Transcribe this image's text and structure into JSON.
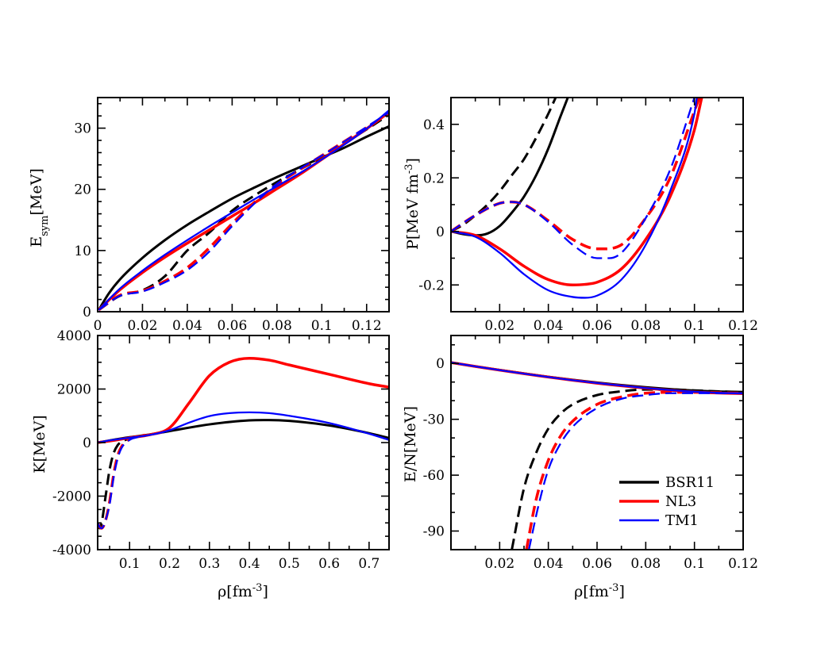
{
  "chart_data": [
    {
      "id": "esym",
      "type": "line",
      "ylabel_main": "E",
      "ylabel_sub": "sym",
      "ylabel_tail": "[MeV]",
      "xlim": [
        0,
        0.13
      ],
      "ylim": [
        0,
        35
      ],
      "xticks": [
        "0",
        "0.02",
        "0.04",
        "0.06",
        "0.08",
        "0.1",
        "0.12"
      ],
      "yticks": [
        "0",
        "10",
        "20",
        "30"
      ],
      "series": [
        {
          "name": "BSR11",
          "model": "BSR11",
          "style": "solid",
          "x": [
            0.0005,
            0.005,
            0.01,
            0.02,
            0.03,
            0.04,
            0.05,
            0.06,
            0.07,
            0.08,
            0.09,
            0.1,
            0.11,
            0.12,
            0.13
          ],
          "y": [
            0.3,
            3.0,
            5.3,
            8.8,
            11.7,
            14.2,
            16.4,
            18.5,
            20.3,
            22.0,
            23.6,
            25.2,
            26.8,
            28.6,
            30.3
          ]
        },
        {
          "name": "BSR11 dashed",
          "model": "BSR11",
          "style": "dashed",
          "x": [
            0.0005,
            0.01,
            0.02,
            0.03,
            0.04,
            0.05,
            0.06,
            0.07,
            0.08,
            0.09,
            0.1,
            0.11,
            0.12,
            0.13
          ],
          "y": [
            0.3,
            2.6,
            3.5,
            5.8,
            10.0,
            13.0,
            16.5,
            19.0,
            21.2,
            23.2,
            25.2,
            27.5,
            29.8,
            32.2
          ]
        },
        {
          "name": "NL3",
          "model": "NL3",
          "style": "solid",
          "x": [
            0.0005,
            0.01,
            0.02,
            0.03,
            0.04,
            0.05,
            0.06,
            0.07,
            0.08,
            0.09,
            0.1,
            0.11,
            0.12,
            0.13
          ],
          "y": [
            0.3,
            3.6,
            6.4,
            8.9,
            11.2,
            13.4,
            15.6,
            17.8,
            20.1,
            22.4,
            24.9,
            27.4,
            29.9,
            32.6
          ]
        },
        {
          "name": "NL3 dashed",
          "model": "NL3",
          "style": "dashed",
          "x": [
            0.0005,
            0.01,
            0.02,
            0.03,
            0.04,
            0.05,
            0.06,
            0.07,
            0.08,
            0.09,
            0.1,
            0.11,
            0.12,
            0.13
          ],
          "y": [
            0.3,
            2.7,
            3.4,
            5.0,
            7.2,
            10.5,
            14.4,
            17.9,
            20.8,
            23.2,
            25.5,
            27.8,
            30.1,
            32.4
          ]
        },
        {
          "name": "TM1",
          "model": "TM1",
          "style": "solid",
          "x": [
            0.0005,
            0.01,
            0.02,
            0.03,
            0.04,
            0.05,
            0.06,
            0.07,
            0.08,
            0.09,
            0.1,
            0.11,
            0.12,
            0.13
          ],
          "y": [
            0.3,
            3.8,
            6.7,
            9.3,
            11.7,
            14.0,
            16.2,
            18.4,
            20.5,
            22.6,
            24.9,
            27.3,
            29.9,
            32.9
          ]
        },
        {
          "name": "TM1 dashed",
          "model": "TM1",
          "style": "dashed",
          "x": [
            0.0005,
            0.01,
            0.02,
            0.03,
            0.04,
            0.05,
            0.06,
            0.07,
            0.08,
            0.09,
            0.1,
            0.11,
            0.12,
            0.13
          ],
          "y": [
            0.3,
            2.6,
            3.3,
            4.8,
            6.8,
            9.9,
            14.0,
            17.7,
            20.9,
            23.3,
            25.5,
            27.8,
            30.2,
            32.6
          ]
        }
      ]
    },
    {
      "id": "pressure",
      "type": "line",
      "ylabel_main": "P[MeV fm",
      "ylabel_sup": "-3",
      "ylabel_tail": "]",
      "xlim": [
        0,
        0.12
      ],
      "ylim": [
        -0.3,
        0.5
      ],
      "xticks": [
        "0.02",
        "0.04",
        "0.06",
        "0.08",
        "0.1",
        "0.12"
      ],
      "yticks": [
        "-0.2",
        "0",
        "0.2",
        "0.4"
      ],
      "series": [
        {
          "name": "BSR11",
          "model": "BSR11",
          "style": "solid",
          "x": [
            0.0,
            0.005,
            0.01,
            0.015,
            0.02,
            0.025,
            0.03,
            0.035,
            0.04,
            0.045,
            0.048
          ],
          "y": [
            0.0,
            -0.01,
            -0.015,
            -0.008,
            0.02,
            0.07,
            0.13,
            0.21,
            0.31,
            0.43,
            0.5
          ]
        },
        {
          "name": "BSR11 dashed",
          "model": "BSR11",
          "style": "dashed",
          "x": [
            0.0,
            0.005,
            0.01,
            0.015,
            0.02,
            0.025,
            0.03,
            0.035,
            0.04,
            0.043
          ],
          "y": [
            0.0,
            0.025,
            0.06,
            0.1,
            0.15,
            0.21,
            0.27,
            0.35,
            0.44,
            0.5
          ]
        },
        {
          "name": "NL3",
          "model": "NL3",
          "style": "solid",
          "x": [
            0.0,
            0.01,
            0.02,
            0.03,
            0.04,
            0.05,
            0.055,
            0.06,
            0.07,
            0.08,
            0.09,
            0.1,
            0.103
          ],
          "y": [
            0.0,
            -0.015,
            -0.065,
            -0.13,
            -0.18,
            -0.2,
            -0.198,
            -0.19,
            -0.14,
            -0.03,
            0.13,
            0.38,
            0.5
          ]
        },
        {
          "name": "NL3 dashed",
          "model": "NL3",
          "style": "dashed",
          "x": [
            0.0,
            0.01,
            0.02,
            0.025,
            0.03,
            0.04,
            0.05,
            0.06,
            0.07,
            0.08,
            0.09,
            0.1,
            0.102
          ],
          "y": [
            0.0,
            0.06,
            0.105,
            0.11,
            0.1,
            0.04,
            -0.03,
            -0.065,
            -0.05,
            0.05,
            0.2,
            0.45,
            0.5
          ]
        },
        {
          "name": "TM1",
          "model": "TM1",
          "style": "solid",
          "x": [
            0.0,
            0.01,
            0.02,
            0.03,
            0.04,
            0.05,
            0.055,
            0.06,
            0.07,
            0.08,
            0.09,
            0.1,
            0.101
          ],
          "y": [
            0.0,
            -0.02,
            -0.08,
            -0.16,
            -0.22,
            -0.245,
            -0.248,
            -0.24,
            -0.18,
            -0.05,
            0.15,
            0.44,
            0.5
          ]
        },
        {
          "name": "TM1 dashed",
          "model": "TM1",
          "style": "dashed",
          "x": [
            0.0,
            0.01,
            0.02,
            0.025,
            0.03,
            0.04,
            0.05,
            0.06,
            0.065,
            0.07,
            0.08,
            0.09,
            0.1
          ],
          "y": [
            0.0,
            0.06,
            0.105,
            0.11,
            0.1,
            0.035,
            -0.05,
            -0.1,
            -0.1,
            -0.08,
            0.05,
            0.23,
            0.5
          ]
        }
      ]
    },
    {
      "id": "incompressibility",
      "type": "line",
      "xlabel_main": "ρ[fm",
      "xlabel_sup": "-3",
      "xlabel_tail": "]",
      "ylabel_main": "K[MeV]",
      "xlim": [
        0.02,
        0.75
      ],
      "ylim": [
        -4000,
        4000
      ],
      "xticks": [
        "0.1",
        "0.2",
        "0.3",
        "0.4",
        "0.5",
        "0.6",
        "0.7"
      ],
      "yticks": [
        "-4000",
        "-2000",
        "0",
        "2000",
        "4000"
      ],
      "series": [
        {
          "name": "BSR11",
          "model": "BSR11",
          "style": "solid",
          "x": [
            0.02,
            0.05,
            0.1,
            0.15,
            0.2,
            0.3,
            0.4,
            0.45,
            0.5,
            0.6,
            0.7,
            0.75
          ],
          "y": [
            0,
            80,
            200,
            300,
            430,
            680,
            830,
            840,
            810,
            640,
            350,
            170
          ]
        },
        {
          "name": "BSR11 dashed",
          "model": "BSR11",
          "style": "dashed",
          "x": [
            0.02,
            0.025,
            0.03,
            0.04,
            0.05,
            0.06,
            0.07,
            0.08,
            0.1,
            0.12
          ],
          "y": [
            -3000,
            -3200,
            -3000,
            -2000,
            -1000,
            -400,
            -100,
            30,
            150,
            210
          ]
        },
        {
          "name": "NL3",
          "model": "NL3",
          "style": "solid",
          "x": [
            0.02,
            0.05,
            0.1,
            0.15,
            0.2,
            0.25,
            0.3,
            0.35,
            0.4,
            0.45,
            0.5,
            0.6,
            0.7,
            0.75
          ],
          "y": [
            0,
            60,
            180,
            290,
            550,
            1500,
            2500,
            3000,
            3150,
            3080,
            2900,
            2550,
            2200,
            2070
          ]
        },
        {
          "name": "NL3 dashed",
          "model": "NL3",
          "style": "dashed",
          "x": [
            0.02,
            0.025,
            0.03,
            0.04,
            0.05,
            0.06,
            0.07,
            0.08,
            0.1,
            0.12,
            0.14
          ],
          "y": [
            -3000,
            -3150,
            -3200,
            -2900,
            -2200,
            -1200,
            -500,
            -150,
            130,
            230,
            280
          ]
        },
        {
          "name": "TM1",
          "model": "TM1",
          "style": "solid",
          "x": [
            0.02,
            0.05,
            0.1,
            0.15,
            0.2,
            0.25,
            0.3,
            0.35,
            0.4,
            0.45,
            0.5,
            0.6,
            0.7,
            0.75
          ],
          "y": [
            0,
            80,
            180,
            280,
            460,
            750,
            990,
            1100,
            1130,
            1100,
            1000,
            730,
            330,
            100
          ]
        },
        {
          "name": "TM1 dashed",
          "model": "TM1",
          "style": "dashed",
          "x": [
            0.02,
            0.025,
            0.03,
            0.04,
            0.05,
            0.06,
            0.07,
            0.08,
            0.1,
            0.12,
            0.14
          ],
          "y": [
            -3000,
            -3150,
            -3200,
            -2900,
            -2300,
            -1300,
            -600,
            -200,
            100,
            200,
            260
          ]
        }
      ]
    },
    {
      "id": "energy",
      "type": "line",
      "xlabel_main": "ρ[fm",
      "xlabel_sup": "-3",
      "xlabel_tail": "]",
      "ylabel_main": "E/N[MeV]",
      "xlim": [
        0,
        0.12
      ],
      "ylim": [
        -100,
        15
      ],
      "xticks": [
        "0.02",
        "0.04",
        "0.06",
        "0.08",
        "0.1",
        "0.12"
      ],
      "yticks": [
        "-90",
        "-60",
        "-30",
        "0"
      ],
      "legend_position": "lower-right",
      "series": [
        {
          "name": "BSR11",
          "model": "BSR11",
          "style": "solid",
          "x": [
            0.0,
            0.01,
            0.02,
            0.03,
            0.04,
            0.05,
            0.06,
            0.07,
            0.08,
            0.09,
            0.1,
            0.11,
            0.12
          ],
          "y": [
            0.5,
            -1.6,
            -3.5,
            -5.4,
            -7.2,
            -8.8,
            -10.3,
            -11.6,
            -12.8,
            -13.8,
            -14.6,
            -15.1,
            -15.3
          ]
        },
        {
          "name": "BSR11 dashed",
          "model": "BSR11",
          "style": "dashed",
          "x": [
            0.025,
            0.03,
            0.035,
            0.04,
            0.045,
            0.05,
            0.06,
            0.07,
            0.08,
            0.09,
            0.1,
            0.12
          ],
          "y": [
            -100,
            -67,
            -48,
            -35,
            -27,
            -22,
            -17,
            -15,
            -14,
            -14,
            -14.5,
            -15.5
          ]
        },
        {
          "name": "NL3",
          "model": "NL3",
          "style": "solid",
          "x": [
            0.0,
            0.01,
            0.02,
            0.03,
            0.04,
            0.05,
            0.06,
            0.07,
            0.08,
            0.09,
            0.1,
            0.11,
            0.12
          ],
          "y": [
            0.5,
            -1.6,
            -3.6,
            -5.5,
            -7.3,
            -9.0,
            -10.6,
            -12.0,
            -13.3,
            -14.4,
            -15.3,
            -15.9,
            -16.2
          ]
        },
        {
          "name": "NL3 dashed",
          "model": "NL3",
          "style": "dashed",
          "x": [
            0.031,
            0.035,
            0.04,
            0.045,
            0.05,
            0.06,
            0.07,
            0.08,
            0.09,
            0.1,
            0.12
          ],
          "y": [
            -100,
            -73,
            -52,
            -39,
            -31,
            -22,
            -18,
            -16,
            -15.5,
            -15.5,
            -16
          ]
        },
        {
          "name": "TM1",
          "model": "TM1",
          "style": "solid",
          "x": [
            0.0,
            0.01,
            0.02,
            0.03,
            0.04,
            0.05,
            0.06,
            0.07,
            0.08,
            0.09,
            0.1,
            0.11,
            0.12
          ],
          "y": [
            0.5,
            -1.6,
            -3.6,
            -5.5,
            -7.3,
            -9.0,
            -10.5,
            -11.9,
            -13.2,
            -14.3,
            -15.2,
            -15.8,
            -16.1
          ]
        },
        {
          "name": "TM1 dashed",
          "model": "TM1",
          "style": "dashed",
          "x": [
            0.032,
            0.036,
            0.04,
            0.045,
            0.05,
            0.06,
            0.07,
            0.08,
            0.09,
            0.1,
            0.12
          ],
          "y": [
            -100,
            -76,
            -57,
            -43,
            -34,
            -24,
            -19,
            -17,
            -16,
            -16,
            -16
          ]
        }
      ]
    }
  ],
  "legend": {
    "entries": [
      {
        "label": "BSR11",
        "model": "BSR11"
      },
      {
        "label": "NL3",
        "model": "NL3"
      },
      {
        "label": "TM1",
        "model": "TM1"
      }
    ]
  },
  "colors": {
    "BSR11": "#000000",
    "NL3": "#ff0000",
    "TM1": "#0000ff"
  }
}
